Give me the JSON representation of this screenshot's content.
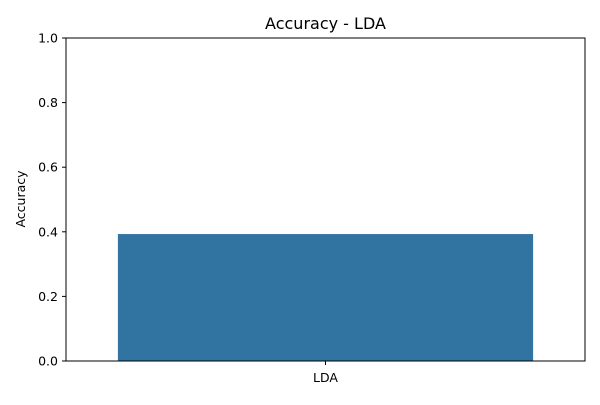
{
  "chart_data": {
    "type": "bar",
    "title": "Accuracy - LDA",
    "xlabel": "",
    "ylabel": "Accuracy",
    "categories": [
      "LDA"
    ],
    "values": [
      0.393
    ],
    "ylim": [
      0,
      1
    ],
    "yticks": [
      "0.0",
      "0.2",
      "0.4",
      "0.6",
      "0.8",
      "1.0"
    ],
    "bar_color": "#3274a1",
    "grid": false,
    "legend": "none"
  }
}
